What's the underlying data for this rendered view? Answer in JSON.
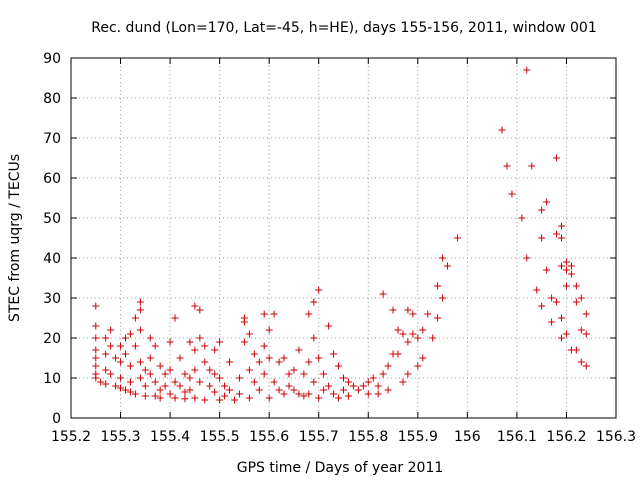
{
  "chart_data": {
    "type": "scatter",
    "title": "Rec. dund (Lon=170, Lat=-45, h=HE), days 155-156, 2011, window 001",
    "xlabel": "GPS time / Days of year 2011",
    "ylabel": "STEC from uqrg / TECUs",
    "xlim": [
      155.2,
      156.3
    ],
    "ylim": [
      0,
      90
    ],
    "xticks": [
      "155.2",
      "155.3",
      "155.4",
      "155.5",
      "155.6",
      "155.7",
      "155.8",
      "155.9",
      "156",
      "156.1",
      "156.2",
      "156.3"
    ],
    "yticks": [
      "0",
      "10",
      "20",
      "30",
      "40",
      "50",
      "60",
      "70",
      "80",
      "90"
    ],
    "grid": true,
    "marker": "plus",
    "color": "#cc0000",
    "series": [
      {
        "name": "",
        "points": [
          [
            155.25,
            28
          ],
          [
            155.25,
            23
          ],
          [
            155.25,
            20
          ],
          [
            155.25,
            17
          ],
          [
            155.25,
            15
          ],
          [
            155.25,
            13
          ],
          [
            155.25,
            11
          ],
          [
            155.25,
            10
          ],
          [
            155.26,
            9
          ],
          [
            155.27,
            20
          ],
          [
            155.27,
            16
          ],
          [
            155.27,
            12
          ],
          [
            155.27,
            8.5
          ],
          [
            155.28,
            22
          ],
          [
            155.28,
            18
          ],
          [
            155.28,
            11
          ],
          [
            155.29,
            15
          ],
          [
            155.29,
            8
          ],
          [
            155.3,
            18
          ],
          [
            155.3,
            14
          ],
          [
            155.3,
            10
          ],
          [
            155.3,
            7.5
          ],
          [
            155.31,
            20
          ],
          [
            155.31,
            16
          ],
          [
            155.31,
            7
          ],
          [
            155.32,
            21
          ],
          [
            155.32,
            13
          ],
          [
            155.32,
            9
          ],
          [
            155.32,
            6.5
          ],
          [
            155.33,
            25
          ],
          [
            155.33,
            18
          ],
          [
            155.33,
            6
          ],
          [
            155.34,
            27
          ],
          [
            155.34,
            22
          ],
          [
            155.34,
            14
          ],
          [
            155.34,
            10
          ],
          [
            155.34,
            29
          ],
          [
            155.35,
            12
          ],
          [
            155.35,
            8
          ],
          [
            155.35,
            5.5
          ],
          [
            155.36,
            20
          ],
          [
            155.36,
            15
          ],
          [
            155.36,
            11
          ],
          [
            155.37,
            18
          ],
          [
            155.37,
            9
          ],
          [
            155.37,
            5.5
          ],
          [
            155.38,
            13
          ],
          [
            155.38,
            7
          ],
          [
            155.38,
            5
          ],
          [
            155.39,
            11
          ],
          [
            155.39,
            8
          ],
          [
            155.4,
            19
          ],
          [
            155.4,
            12
          ],
          [
            155.4,
            6
          ],
          [
            155.41,
            25
          ],
          [
            155.41,
            9
          ],
          [
            155.41,
            5
          ],
          [
            155.42,
            15
          ],
          [
            155.42,
            8
          ],
          [
            155.43,
            11
          ],
          [
            155.43,
            6.5
          ],
          [
            155.43,
            4.8
          ],
          [
            155.44,
            19
          ],
          [
            155.44,
            10
          ],
          [
            155.44,
            7
          ],
          [
            155.45,
            28
          ],
          [
            155.45,
            17
          ],
          [
            155.45,
            12
          ],
          [
            155.45,
            5
          ],
          [
            155.46,
            27
          ],
          [
            155.46,
            20
          ],
          [
            155.46,
            9
          ],
          [
            155.47,
            18
          ],
          [
            155.47,
            14
          ],
          [
            155.47,
            4.5
          ],
          [
            155.48,
            12
          ],
          [
            155.48,
            8
          ],
          [
            155.49,
            17
          ],
          [
            155.49,
            11
          ],
          [
            155.49,
            6.5
          ],
          [
            155.5,
            19
          ],
          [
            155.5,
            10
          ],
          [
            155.5,
            4.5
          ],
          [
            155.51,
            8
          ],
          [
            155.51,
            5.5
          ],
          [
            155.52,
            14
          ],
          [
            155.52,
            7
          ],
          [
            155.53,
            4.5
          ],
          [
            155.54,
            10
          ],
          [
            155.54,
            6
          ],
          [
            155.55,
            25
          ],
          [
            155.55,
            24
          ],
          [
            155.55,
            19
          ],
          [
            155.56,
            21
          ],
          [
            155.56,
            12
          ],
          [
            155.56,
            5
          ],
          [
            155.57,
            16
          ],
          [
            155.57,
            9
          ],
          [
            155.58,
            14
          ],
          [
            155.58,
            7
          ],
          [
            155.59,
            26
          ],
          [
            155.59,
            18
          ],
          [
            155.59,
            11
          ],
          [
            155.6,
            22
          ],
          [
            155.6,
            15
          ],
          [
            155.6,
            5
          ],
          [
            155.61,
            26
          ],
          [
            155.61,
            9
          ],
          [
            155.62,
            14
          ],
          [
            155.62,
            7
          ],
          [
            155.63,
            15
          ],
          [
            155.63,
            6
          ],
          [
            155.64,
            11
          ],
          [
            155.64,
            8
          ],
          [
            155.65,
            12
          ],
          [
            155.65,
            7
          ],
          [
            155.66,
            17
          ],
          [
            155.66,
            6
          ],
          [
            155.67,
            11
          ],
          [
            155.67,
            5.5
          ],
          [
            155.68,
            26
          ],
          [
            155.68,
            14
          ],
          [
            155.68,
            6
          ],
          [
            155.69,
            29
          ],
          [
            155.69,
            20
          ],
          [
            155.69,
            9
          ],
          [
            155.7,
            32
          ],
          [
            155.7,
            15
          ],
          [
            155.7,
            5
          ],
          [
            155.71,
            11
          ],
          [
            155.71,
            7
          ],
          [
            155.72,
            23
          ],
          [
            155.72,
            8
          ],
          [
            155.73,
            16
          ],
          [
            155.73,
            6
          ],
          [
            155.74,
            13
          ],
          [
            155.74,
            5
          ],
          [
            155.75,
            10
          ],
          [
            155.75,
            7
          ],
          [
            155.76,
            9
          ],
          [
            155.76,
            5.5
          ],
          [
            155.77,
            8
          ],
          [
            155.78,
            7
          ],
          [
            155.79,
            8
          ],
          [
            155.8,
            9
          ],
          [
            155.8,
            6
          ],
          [
            155.81,
            10
          ],
          [
            155.82,
            6
          ],
          [
            155.82,
            8
          ],
          [
            155.83,
            31
          ],
          [
            155.83,
            11
          ],
          [
            155.84,
            13
          ],
          [
            155.84,
            7
          ],
          [
            155.85,
            27
          ],
          [
            155.85,
            16
          ],
          [
            155.86,
            22
          ],
          [
            155.86,
            16
          ],
          [
            155.87,
            21
          ],
          [
            155.87,
            9
          ],
          [
            155.88,
            27
          ],
          [
            155.88,
            19
          ],
          [
            155.88,
            11
          ],
          [
            155.89,
            26
          ],
          [
            155.89,
            21
          ],
          [
            155.9,
            20
          ],
          [
            155.9,
            13
          ],
          [
            155.91,
            22
          ],
          [
            155.91,
            15
          ],
          [
            155.92,
            26
          ],
          [
            155.93,
            20
          ],
          [
            155.94,
            33
          ],
          [
            155.94,
            25
          ],
          [
            155.95,
            40
          ],
          [
            155.95,
            30
          ],
          [
            155.96,
            38
          ],
          [
            155.98,
            45
          ],
          [
            156.07,
            72
          ],
          [
            156.08,
            63
          ],
          [
            156.09,
            56
          ],
          [
            156.11,
            50
          ],
          [
            156.12,
            87
          ],
          [
            156.12,
            40
          ],
          [
            156.13,
            63
          ],
          [
            156.14,
            32
          ],
          [
            156.15,
            52
          ],
          [
            156.15,
            45
          ],
          [
            156.15,
            28
          ],
          [
            156.16,
            54
          ],
          [
            156.16,
            37
          ],
          [
            156.17,
            30
          ],
          [
            156.17,
            24
          ],
          [
            156.18,
            65
          ],
          [
            156.18,
            46
          ],
          [
            156.18,
            29
          ],
          [
            156.19,
            48
          ],
          [
            156.19,
            45
          ],
          [
            156.19,
            38
          ],
          [
            156.19,
            25
          ],
          [
            156.19,
            20
          ],
          [
            156.2,
            39
          ],
          [
            156.2,
            37
          ],
          [
            156.2,
            33
          ],
          [
            156.2,
            21
          ],
          [
            156.21,
            38
          ],
          [
            156.21,
            36
          ],
          [
            156.21,
            17
          ],
          [
            156.22,
            33
          ],
          [
            156.22,
            29
          ],
          [
            156.22,
            17
          ],
          [
            156.23,
            30
          ],
          [
            156.23,
            22
          ],
          [
            156.23,
            14
          ],
          [
            156.24,
            26
          ],
          [
            156.24,
            21
          ],
          [
            156.24,
            13
          ]
        ]
      }
    ]
  }
}
